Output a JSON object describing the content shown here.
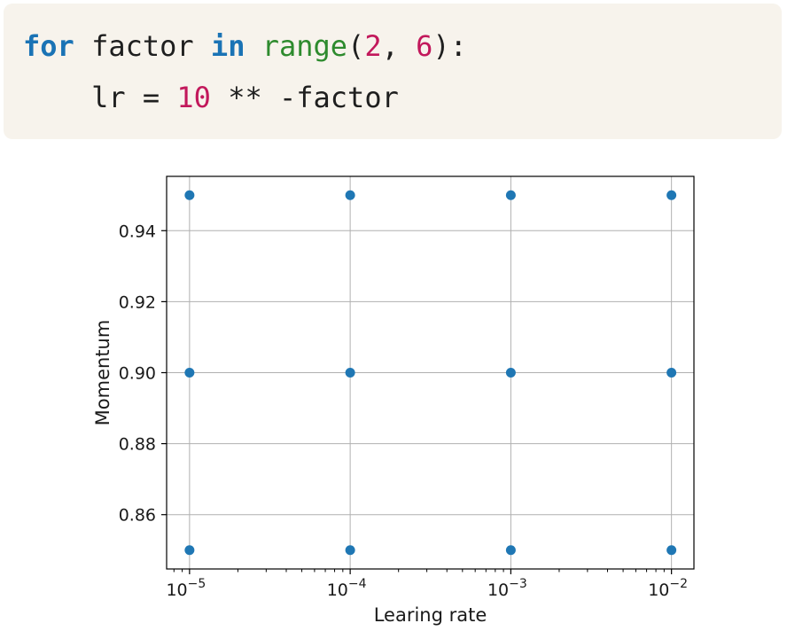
{
  "code": {
    "line1": [
      {
        "text": "for",
        "kind": "kw"
      },
      {
        "text": " factor ",
        "kind": "plain"
      },
      {
        "text": "in",
        "kind": "kw"
      },
      {
        "text": " ",
        "kind": "plain"
      },
      {
        "text": "range",
        "kind": "fn"
      },
      {
        "text": "(",
        "kind": "plain"
      },
      {
        "text": "2",
        "kind": "num"
      },
      {
        "text": ", ",
        "kind": "plain"
      },
      {
        "text": "6",
        "kind": "num"
      },
      {
        "text": "):",
        "kind": "plain"
      }
    ],
    "line2": [
      {
        "text": "    lr = ",
        "kind": "plain"
      },
      {
        "text": "10",
        "kind": "num"
      },
      {
        "text": " ** -factor",
        "kind": "plain"
      }
    ],
    "colors": {
      "background": "#f7f3ec",
      "keyword": "#1a73b5",
      "function": "#2e8b2e",
      "number": "#c2185b",
      "plain": "#1f1f1f"
    }
  },
  "chart_data": {
    "type": "scatter",
    "title": "",
    "xlabel": "Learing rate",
    "ylabel": "Momentum",
    "xscale": "log",
    "xlim": [
      7.2e-06,
      0.0138
    ],
    "ylim": [
      0.8447,
      0.9553
    ],
    "xticks": [
      {
        "value": 1e-05,
        "base": "10",
        "exp": "−5"
      },
      {
        "value": 0.0001,
        "base": "10",
        "exp": "−4"
      },
      {
        "value": 0.001,
        "base": "10",
        "exp": "−3"
      },
      {
        "value": 0.01,
        "base": "10",
        "exp": "−2"
      }
    ],
    "yticks": [
      {
        "value": 0.86,
        "label": "0.86"
      },
      {
        "value": 0.88,
        "label": "0.88"
      },
      {
        "value": 0.9,
        "label": "0.90"
      },
      {
        "value": 0.92,
        "label": "0.92"
      },
      {
        "value": 0.94,
        "label": "0.94"
      }
    ],
    "grid": true,
    "marker_color": "#1f77b4",
    "points": [
      {
        "x": 1e-05,
        "y": 0.85
      },
      {
        "x": 1e-05,
        "y": 0.9
      },
      {
        "x": 1e-05,
        "y": 0.95
      },
      {
        "x": 0.0001,
        "y": 0.85
      },
      {
        "x": 0.0001,
        "y": 0.9
      },
      {
        "x": 0.0001,
        "y": 0.95
      },
      {
        "x": 0.001,
        "y": 0.85
      },
      {
        "x": 0.001,
        "y": 0.9
      },
      {
        "x": 0.001,
        "y": 0.95
      },
      {
        "x": 0.01,
        "y": 0.85
      },
      {
        "x": 0.01,
        "y": 0.9
      },
      {
        "x": 0.01,
        "y": 0.95
      }
    ]
  }
}
